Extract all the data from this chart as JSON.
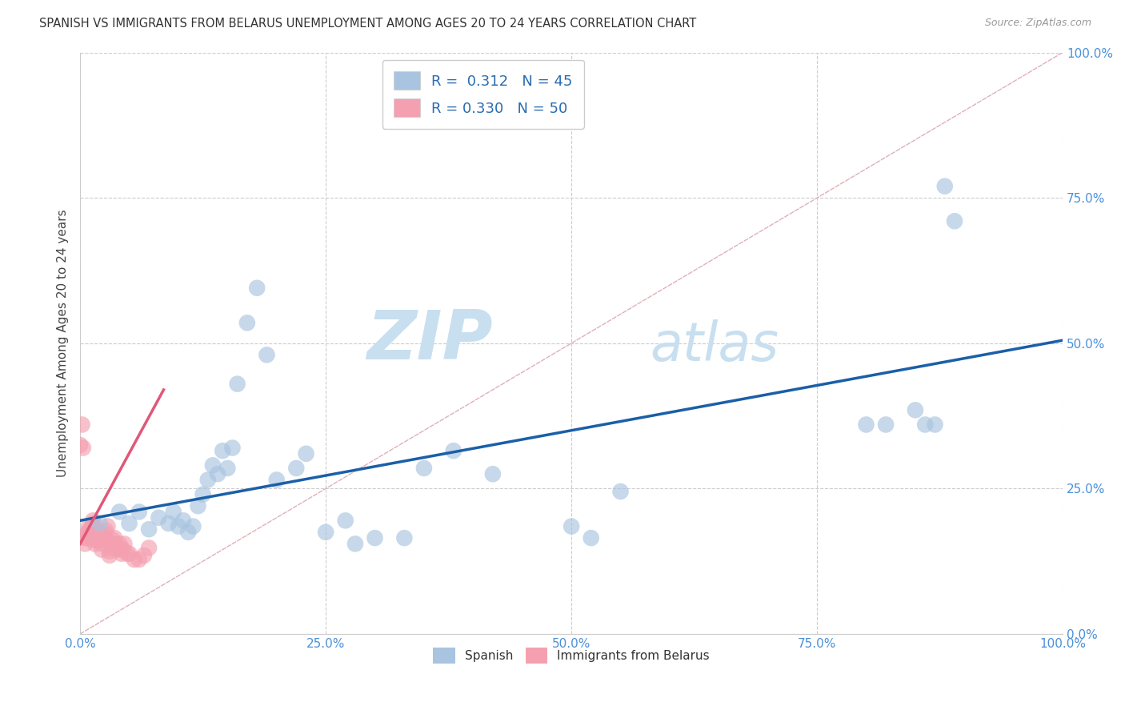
{
  "title": "SPANISH VS IMMIGRANTS FROM BELARUS UNEMPLOYMENT AMONG AGES 20 TO 24 YEARS CORRELATION CHART",
  "source": "Source: ZipAtlas.com",
  "ylabel": "Unemployment Among Ages 20 to 24 years",
  "xlim": [
    0,
    1.0
  ],
  "ylim": [
    0,
    1.0
  ],
  "xticks": [
    0.0,
    0.25,
    0.5,
    0.75,
    1.0
  ],
  "yticks": [
    0.0,
    0.25,
    0.5,
    0.75,
    1.0
  ],
  "xtick_labels": [
    "0.0%",
    "25.0%",
    "50.0%",
    "75.0%",
    "100.0%"
  ],
  "ytick_labels": [
    "0.0%",
    "25.0%",
    "50.0%",
    "75.0%",
    "100.0%"
  ],
  "spanish_R": 0.312,
  "spanish_N": 45,
  "belarus_R": 0.33,
  "belarus_N": 50,
  "spanish_color": "#a8c4e0",
  "belarus_color": "#f4a0b0",
  "spanish_line_color": "#1a5fa8",
  "belarus_line_color": "#e05878",
  "identity_line_color": "#e0b0b8",
  "background_color": "#ffffff",
  "watermark_zip": "ZIP",
  "watermark_atlas": "atlas",
  "watermark_color_zip": "#c8dff0",
  "watermark_color_atlas": "#c8dff0",
  "spanish_line_x0": 0.0,
  "spanish_line_y0": 0.195,
  "spanish_line_x1": 1.0,
  "spanish_line_y1": 0.505,
  "belarus_line_x0": 0.0,
  "belarus_line_y0": 0.155,
  "belarus_line_x1": 0.085,
  "belarus_line_y1": 0.42,
  "spanish_x": [
    0.02,
    0.04,
    0.05,
    0.06,
    0.07,
    0.08,
    0.09,
    0.095,
    0.1,
    0.105,
    0.11,
    0.115,
    0.12,
    0.125,
    0.13,
    0.135,
    0.14,
    0.145,
    0.15,
    0.155,
    0.16,
    0.17,
    0.18,
    0.19,
    0.2,
    0.22,
    0.23,
    0.25,
    0.27,
    0.28,
    0.3,
    0.33,
    0.35,
    0.38,
    0.42,
    0.5,
    0.52,
    0.55,
    0.8,
    0.82,
    0.85,
    0.86,
    0.87,
    0.88,
    0.89
  ],
  "spanish_y": [
    0.19,
    0.21,
    0.19,
    0.21,
    0.18,
    0.2,
    0.19,
    0.21,
    0.185,
    0.195,
    0.175,
    0.185,
    0.22,
    0.24,
    0.265,
    0.29,
    0.275,
    0.315,
    0.285,
    0.32,
    0.43,
    0.535,
    0.595,
    0.48,
    0.265,
    0.285,
    0.31,
    0.175,
    0.195,
    0.155,
    0.165,
    0.165,
    0.285,
    0.315,
    0.275,
    0.185,
    0.165,
    0.245,
    0.36,
    0.36,
    0.385,
    0.36,
    0.36,
    0.77,
    0.71
  ],
  "belarus_x": [
    0.0,
    0.002,
    0.003,
    0.005,
    0.005,
    0.007,
    0.008,
    0.008,
    0.009,
    0.01,
    0.01,
    0.012,
    0.012,
    0.013,
    0.013,
    0.015,
    0.015,
    0.016,
    0.016,
    0.018,
    0.018,
    0.018,
    0.02,
    0.02,
    0.022,
    0.022,
    0.023,
    0.025,
    0.025,
    0.026,
    0.028,
    0.03,
    0.03,
    0.032,
    0.033,
    0.033,
    0.035,
    0.035,
    0.038,
    0.04,
    0.04,
    0.042,
    0.044,
    0.045,
    0.048,
    0.05,
    0.055,
    0.06,
    0.065,
    0.07
  ],
  "belarus_y": [
    0.325,
    0.36,
    0.32,
    0.155,
    0.165,
    0.165,
    0.175,
    0.175,
    0.185,
    0.168,
    0.175,
    0.178,
    0.185,
    0.19,
    0.195,
    0.155,
    0.162,
    0.165,
    0.172,
    0.16,
    0.165,
    0.172,
    0.165,
    0.175,
    0.145,
    0.155,
    0.162,
    0.165,
    0.172,
    0.178,
    0.185,
    0.135,
    0.142,
    0.148,
    0.155,
    0.162,
    0.155,
    0.165,
    0.145,
    0.148,
    0.155,
    0.138,
    0.145,
    0.155,
    0.138,
    0.138,
    0.128,
    0.128,
    0.135,
    0.148
  ]
}
